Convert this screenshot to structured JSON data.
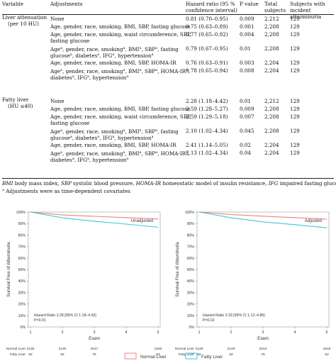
{
  "table": {
    "headers": {
      "variable": "Variable",
      "adjustments": "Adjustments",
      "hr_line1": "Hazard ratio (95 %",
      "hr_line2": "confidence interval)",
      "p": "P value",
      "total_line1": "Total",
      "total_line2": "subjects",
      "inc_line1": "Subjects with",
      "inc_line2": "incident albuminuria"
    },
    "groups": [
      {
        "label_line1": "Liver attenuation",
        "label_line2": "(per 10 HU)",
        "rows": [
          {
            "adj1": "None",
            "adj2": "",
            "hr": "0.81 (0.70–0.95)",
            "p": "0.009",
            "total": "2,212",
            "inc": "129"
          },
          {
            "adj1": "Age, gender, race, smoking, BMI, SBP, fasting glucose",
            "adj2": "",
            "hr": "0.75 (0.63–0.89)",
            "p": "0.001",
            "total": "2,208",
            "inc": "129"
          },
          {
            "adj1": "Age, gender, race, smoking, waist circumference, SBP,",
            "adj2": "fasting glucose",
            "hr": "0.77 (0.65–0.92)",
            "p": "0.004",
            "total": "2,208",
            "inc": "129"
          },
          {
            "adj1": "Age^a, gender, race, smoking^a, BMI^a, SBP^a, fasting",
            "adj2": "glucose^a, diabetes^a, IFG^a, hypertension^a",
            "hr": "0.79 (0.67–0.95)",
            "p": "0.01",
            "total": "2,208",
            "inc": "129"
          },
          {
            "adj1": "Age, gender, race, smoking, BMI, SBP, HOMA-IR",
            "adj2": "",
            "hr": "0.76 (0.63–0.91)",
            "p": "0.003",
            "total": "2,204",
            "inc": "129"
          },
          {
            "adj1": "Age^a, gender, race, smoking^a, BMI^a, SBP^a, HOMA-IR^a,",
            "adj2": "diabetes^a, IFG^a, hypertension^a",
            "hr": "0.78 (0.65–0.94)",
            "p": "0.008",
            "total": "2,204",
            "inc": "129"
          }
        ]
      },
      {
        "label_line1": "Fatty liver",
        "label_line2": "(HU ≤40)",
        "rows": [
          {
            "adj1": "None",
            "adj2": "",
            "hr": "2.28 (1.18–4.42)",
            "p": "0.01",
            "total": "2,212",
            "inc": "129"
          },
          {
            "adj1": "Age, gender, race, smoking, BMI, SBP, fasting glucose",
            "adj2": "",
            "hr": "2.59 (1.28–5.27)",
            "p": "0.009",
            "total": "2,208",
            "inc": "129"
          },
          {
            "adj1": "Age, gender, race, smoking, waist circumference, SBP,",
            "adj2": "fasting glucose",
            "hr": "2.59 (1.29–5.18)",
            "p": "0.007",
            "total": "2,208",
            "inc": "129"
          },
          {
            "adj1": "Age^a, gender, race, smoking^a, BMI^a, SBP^a, fasting",
            "adj2": "glucose^a, diabetes^a, IFG^a, hypertension^a",
            "hr": "2.10 (1.02–4.34)",
            "p": "0.045",
            "total": "2,208",
            "inc": "129"
          },
          {
            "adj1": "Age, gender, race, smoking, BMI, SBP, HOMA-IR",
            "adj2": "",
            "hr": "2.41 (1.14–5.05)",
            "p": "0.02",
            "total": "2,204",
            "inc": "129"
          },
          {
            "adj1": "Age^a, gender, race, smoking^a, BMI^a, SBP^a, HOMA-IR^a,",
            "adj2": "diabetes^a, IFG^a, hypertension^a",
            "hr": "2.13 (1.02–4.34)",
            "p": "0.04",
            "total": "2,204",
            "inc": "129"
          }
        ]
      }
    ],
    "footnote1": "BMI body mass index, SBP systolic blood pressure, HOMA-IR homeostatic model of insulin resistance, IFG impaired fasting glucose",
    "footnote2": "Adjustments were as time-dependent covariates"
  },
  "chart_data": [
    {
      "type": "line",
      "title": "Unadjusted",
      "xlabel": "Exam",
      "ylabel": "Survival Free of Albuminuria",
      "x": [
        1,
        2,
        3,
        4,
        5
      ],
      "ylim": [
        0,
        100
      ],
      "yticks": [
        "0%",
        "10%",
        "20%",
        "30%",
        "40%",
        "50%",
        "60%",
        "70%",
        "80%",
        "90%",
        "100%"
      ],
      "series": [
        {
          "name": "Normal Liver",
          "color": "#f08080",
          "values": [
            100,
            97.5,
            96.3,
            95.2,
            94.0
          ]
        },
        {
          "name": "Fatty Liver",
          "color": "#3cc8d8",
          "values": [
            100,
            95.0,
            92.0,
            89.5,
            86.8
          ]
        }
      ],
      "annotation_line1": "Hazard Ratio 2.28 [95% CI 1.18–4.42]",
      "annotation_line2": "P=0.01",
      "risk_table": {
        "Normal Liver": [
          "2130",
          "2130",
          "2017",
          "",
          "1630"
        ],
        "Fatty Liver": [
          "82",
          "82",
          "76",
          "",
          "63"
        ]
      }
    },
    {
      "type": "line",
      "title": "Adjusted",
      "xlabel": "Exam",
      "ylabel": "Survival Free of Albuminuria",
      "x": [
        1,
        2,
        3,
        4,
        5
      ],
      "ylim": [
        0,
        100
      ],
      "yticks": [
        "0%",
        "10%",
        "20%",
        "30%",
        "40%",
        "50%",
        "60%",
        "70%",
        "80%",
        "90%",
        "100%"
      ],
      "series": [
        {
          "name": "Normal Liver",
          "color": "#f08080",
          "values": [
            100,
            97.8,
            96.4,
            95.2,
            93.8
          ]
        },
        {
          "name": "Fatty Liver",
          "color": "#3cc8d8",
          "values": [
            100,
            95.0,
            91.5,
            89.0,
            86.3
          ]
        }
      ],
      "annotation_line1": "Hazard Ratio 2.33 [95% CI 1.12–4.86]",
      "annotation_line2": "P=0.02",
      "risk_table": {
        "Normal Liver": [
          "2126",
          "2126",
          "2013",
          "",
          "1618"
        ],
        "Fatty Liver": [
          "82",
          "82",
          "76",
          "",
          "63"
        ]
      }
    }
  ],
  "legend": {
    "normal": "Normal Liver",
    "fatty": "Fatty Liver",
    "normal_color": "#f08080",
    "fatty_color": "#3cc8d8"
  }
}
